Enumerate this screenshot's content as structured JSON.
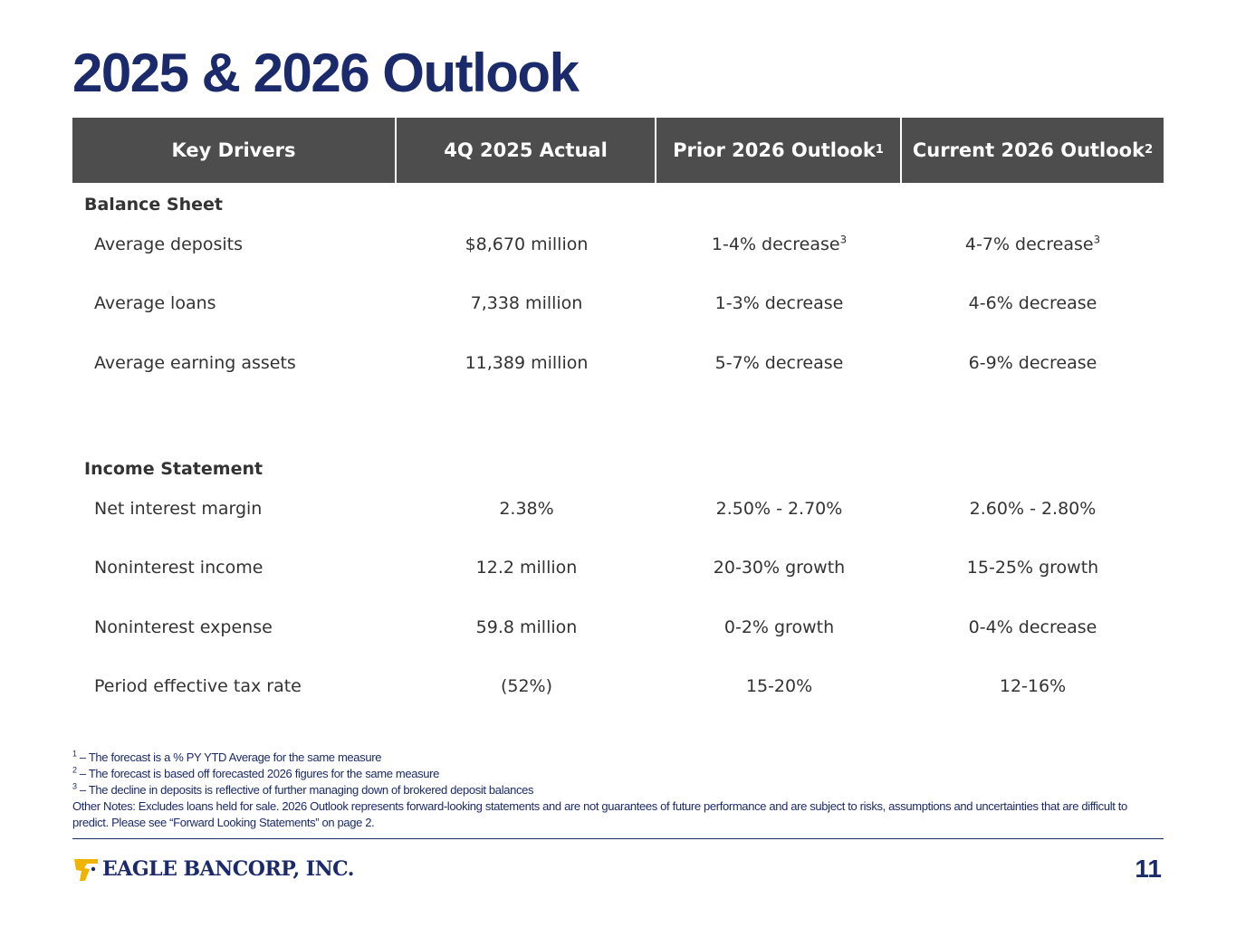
{
  "title": "2025 & 2026 Outlook",
  "table": {
    "headers": [
      {
        "label": "Key Drivers",
        "sup": ""
      },
      {
        "label": "4Q 2025 Actual",
        "sup": ""
      },
      {
        "label": "Prior 2026 Outlook",
        "sup": "1"
      },
      {
        "label": "Current 2026 Outlook",
        "sup": "2"
      }
    ],
    "sections": [
      {
        "name": "Balance Sheet",
        "rows": [
          {
            "driver": "Average deposits",
            "actual": "$8,670 million",
            "prior": "1-4% decrease",
            "prior_sup": "3",
            "current": "4-7% decrease",
            "current_sup": "3"
          },
          {
            "driver": "Average loans",
            "actual": "7,338 million",
            "prior": "1-3% decrease",
            "prior_sup": "",
            "current": "4-6% decrease",
            "current_sup": ""
          },
          {
            "driver": "Average earning assets",
            "actual": "11,389 million",
            "prior": "5-7% decrease",
            "prior_sup": "",
            "current": "6-9% decrease",
            "current_sup": ""
          }
        ]
      },
      {
        "name": "Income Statement",
        "rows": [
          {
            "driver": "Net interest margin",
            "actual": "2.38%",
            "prior": "2.50% - 2.70%",
            "prior_sup": "",
            "current": "2.60% - 2.80%",
            "current_sup": ""
          },
          {
            "driver": "Noninterest income",
            "actual": "12.2 million",
            "prior": "20-30% growth",
            "prior_sup": "",
            "current": "15-25% growth",
            "current_sup": ""
          },
          {
            "driver": "Noninterest expense",
            "actual": "59.8 million",
            "prior": "0-2% growth",
            "prior_sup": "",
            "current": "0-4% decrease",
            "current_sup": ""
          },
          {
            "driver": "Period effective tax rate",
            "actual": "(52%)",
            "prior": "15-20%",
            "prior_sup": "",
            "current": "12-16%",
            "current_sup": ""
          }
        ]
      }
    ]
  },
  "footnotes": [
    {
      "num": "1",
      "text": " – The forecast is a % PY YTD Average for the same measure"
    },
    {
      "num": "2",
      "text": " – The forecast is based off forecasted 2026 figures for the same measure"
    },
    {
      "num": "3",
      "text": " – The decline in deposits is reflective of further managing down of brokered deposit balances"
    }
  ],
  "other_notes": "Other Notes: Excludes loans held for sale. 2026 Outlook represents forward-looking statements and are not guarantees of future performance and are subject to risks, assumptions and uncertainties that are difficult to predict.  Please see “Forward Looking Statements” on page 2.",
  "logo": {
    "text": "EAGLE BANCORP, INC.",
    "icon": "eagle-icon",
    "accent_color": "#f0b400"
  },
  "page_number": "11",
  "colors": {
    "title": "#1b2a6b",
    "header_bg": "#4d4d4d"
  }
}
